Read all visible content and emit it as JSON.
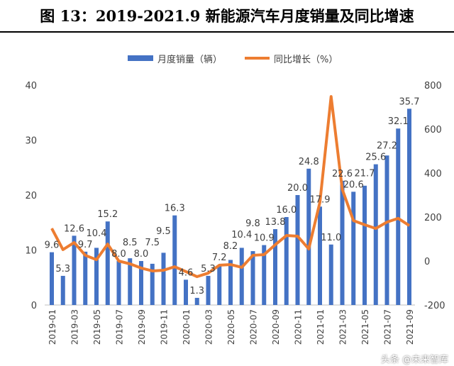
{
  "title": "图 13：2019-2021.9 新能源汽车月度销量及同比增速",
  "watermark": "头条 @未来智库",
  "chart_data": {
    "type": "bar+line",
    "categories": [
      "2019-01",
      "2019-02",
      "2019-03",
      "2019-04",
      "2019-05",
      "2019-06",
      "2019-07",
      "2019-08",
      "2019-09",
      "2019-10",
      "2019-11",
      "2019-12",
      "2020-01",
      "2020-02",
      "2020-03",
      "2020-04",
      "2020-05",
      "2020-06",
      "2020-07",
      "2020-08",
      "2020-09",
      "2020-10",
      "2020-11",
      "2020-12",
      "2021-01",
      "2021-02",
      "2021-03",
      "2021-04",
      "2021-05",
      "2021-06",
      "2021-07",
      "2021-08",
      "2021-09"
    ],
    "xtick_labels": [
      "2019-01",
      "2019-03",
      "2019-05",
      "2019-07",
      "2019-09",
      "2019-11",
      "2020-01",
      "2020-03",
      "2020-05",
      "2020-07",
      "2020-09",
      "2020-11",
      "2021-01",
      "2021-03",
      "2021-05",
      "2021-07",
      "2021-09"
    ],
    "series": [
      {
        "name": "月度销量（辆）",
        "type": "bar",
        "axis": "left",
        "color": "#4472C4",
        "values": [
          9.6,
          5.3,
          12.6,
          9.7,
          10.4,
          15.2,
          8.0,
          8.5,
          8.0,
          7.5,
          9.5,
          16.3,
          4.6,
          1.3,
          5.3,
          7.2,
          8.2,
          10.4,
          9.8,
          10.9,
          13.8,
          16.0,
          20.0,
          24.8,
          17.9,
          11.0,
          22.6,
          20.6,
          21.7,
          25.6,
          27.2,
          32.1,
          35.7
        ]
      },
      {
        "name": "同比增长（%）",
        "type": "line",
        "axis": "right",
        "color": "#ED7D31",
        "values": [
          148,
          52,
          84,
          26,
          6,
          77,
          0,
          -13,
          -32,
          -45,
          -42,
          -26,
          -48,
          -71,
          -55,
          -19,
          -16,
          -29,
          26,
          29,
          74,
          116,
          113,
          55,
          268,
          748,
          326,
          184,
          165,
          148,
          177,
          194,
          161
        ]
      }
    ],
    "ylim_left": [
      0,
      40
    ],
    "yticks_left": [
      0,
      10,
      20,
      30,
      40
    ],
    "ylim_right": [
      -200,
      800
    ],
    "yticks_right": [
      -200,
      0,
      200,
      400,
      600,
      800
    ],
    "grid": false,
    "legend": "top"
  }
}
